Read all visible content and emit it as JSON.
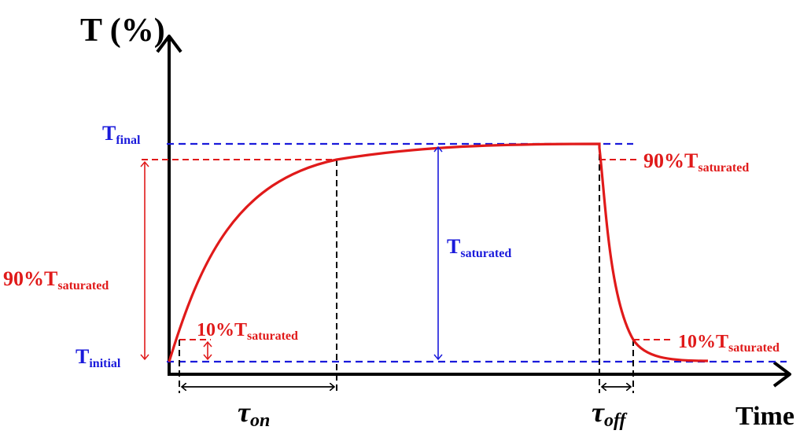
{
  "colors": {
    "curve": "#e01a1a",
    "blue_lines": "#1a1adb",
    "axes": "#000000"
  },
  "axes": {
    "y_label": "T (%)",
    "x_label": "Time"
  },
  "levels": {
    "final": {
      "main": "T",
      "sub": "final"
    },
    "initial": {
      "main": "T",
      "sub": "initial"
    }
  },
  "annotations": {
    "left_span": {
      "main": "90%T",
      "sub": "saturated"
    },
    "rise_small": {
      "main": "10%T",
      "sub": "saturated"
    },
    "saturated_span": {
      "main": "T",
      "sub": "saturated"
    },
    "fall_top": {
      "main": "90%T",
      "sub": "saturated"
    },
    "fall_bottom": {
      "main": "10%T",
      "sub": "saturated"
    },
    "tau_on": {
      "main": "τ",
      "sub": "on"
    },
    "tau_off": {
      "main": "τ",
      "sub": "off"
    }
  }
}
